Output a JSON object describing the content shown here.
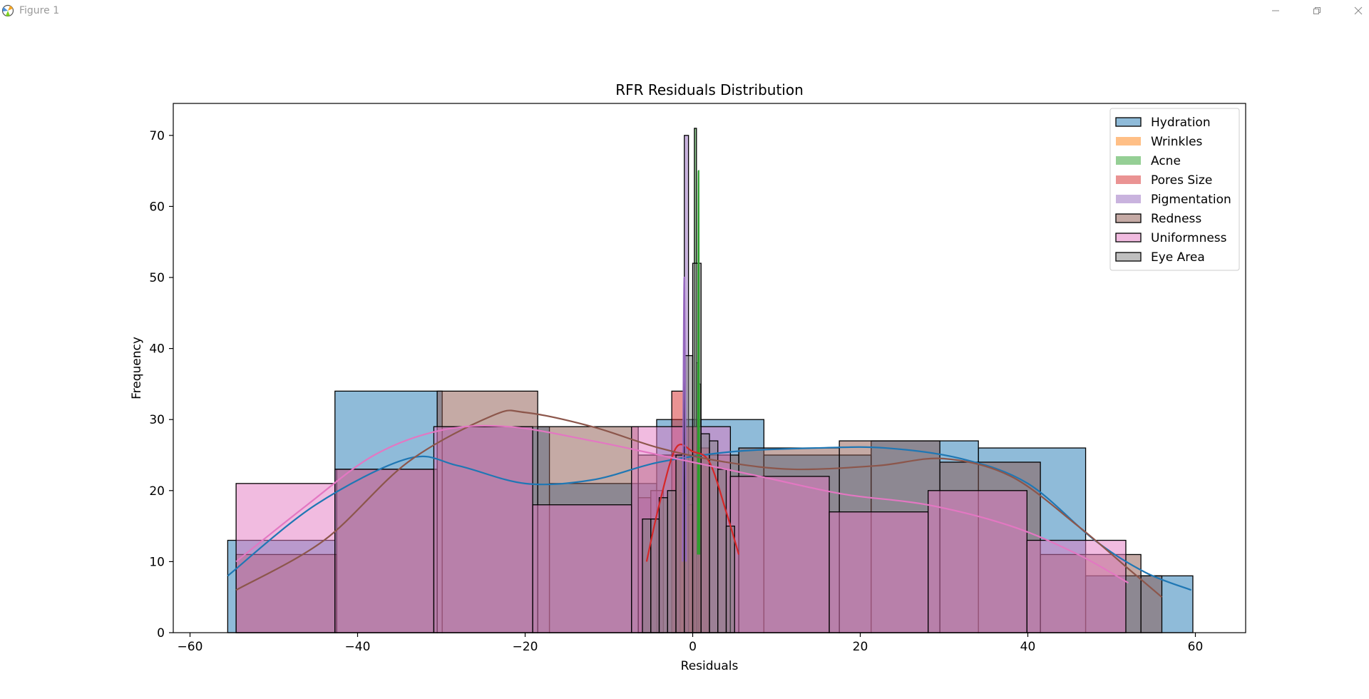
{
  "window": {
    "title": "Figure 1"
  },
  "icons": {
    "app": "matplotlib-figure-icon",
    "minimize": "minimize-icon",
    "maximize": "restore-icon",
    "close": "close-icon"
  },
  "chart_data": {
    "type": "histogram",
    "title": "RFR Residuals Distribution",
    "xlabel": "Residuals",
    "ylabel": "Frequency",
    "xlim": [
      -62,
      66
    ],
    "ylim": [
      0,
      74.5
    ],
    "xticks": [
      -60,
      -40,
      -20,
      0,
      20,
      40,
      60
    ],
    "yticks": [
      0,
      10,
      20,
      30,
      40,
      50,
      60,
      70
    ],
    "grid": false,
    "legend_position": "upper right",
    "kde": true,
    "series": [
      {
        "name": "Hydration",
        "color": "#1f77b4",
        "bins": [
          {
            "x0": -55.5,
            "x1": -42.7,
            "count": 13
          },
          {
            "x0": -42.7,
            "x1": -29.9,
            "count": 34
          },
          {
            "x0": -29.9,
            "x1": -17.1,
            "count": 29
          },
          {
            "x0": -17.1,
            "x1": -4.3,
            "count": 21
          },
          {
            "x0": -4.3,
            "x1": 8.5,
            "count": 30
          },
          {
            "x0": 8.5,
            "x1": 21.3,
            "count": 25
          },
          {
            "x0": 21.3,
            "x1": 34.1,
            "count": 27
          },
          {
            "x0": 34.1,
            "x1": 46.9,
            "count": 26
          },
          {
            "x0": 46.9,
            "x1": 59.7,
            "count": 8
          }
        ],
        "kde_curve": [
          [
            -55.5,
            8
          ],
          [
            -45,
            18
          ],
          [
            -34,
            24.5
          ],
          [
            -28,
            23.5
          ],
          [
            -20,
            21
          ],
          [
            -12,
            21.5
          ],
          [
            -4,
            24
          ],
          [
            5,
            25.5
          ],
          [
            15,
            26
          ],
          [
            23,
            26
          ],
          [
            32,
            24.5
          ],
          [
            40,
            21
          ],
          [
            48,
            13
          ],
          [
            54,
            8.5
          ],
          [
            59.5,
            6
          ]
        ]
      },
      {
        "name": "Wrinkles",
        "color": "#ff7f0e",
        "bins": [
          {
            "x0": -1.5,
            "x1": -1.0,
            "count": 20
          },
          {
            "x0": -1.0,
            "x1": -0.5,
            "count": 24
          },
          {
            "x0": -0.5,
            "x1": 0.0,
            "count": 18
          }
        ],
        "kde_curve": []
      },
      {
        "name": "Acne",
        "color": "#2ca02c",
        "bins": [
          {
            "x0": 0.2,
            "x1": 0.45,
            "count": 71
          },
          {
            "x0": 0.45,
            "x1": 0.7,
            "count": 38
          },
          {
            "x0": 0.7,
            "x1": 0.95,
            "count": 35
          }
        ],
        "kde_curve": [
          [
            0.6,
            11
          ],
          [
            0.65,
            35
          ],
          [
            0.7,
            65
          ],
          [
            0.75,
            35
          ],
          [
            0.8,
            11
          ]
        ]
      },
      {
        "name": "Pores Size",
        "color": "#d62728",
        "bins": [
          {
            "x0": -2.5,
            "x1": -1.0,
            "count": 34
          },
          {
            "x0": -1.0,
            "x1": 0.5,
            "count": 29
          },
          {
            "x0": 0.5,
            "x1": 2.0,
            "count": 26
          }
        ],
        "kde_curve": [
          [
            -5.5,
            10
          ],
          [
            -4,
            18
          ],
          [
            -2,
            26
          ],
          [
            0,
            25.5
          ],
          [
            2,
            24
          ],
          [
            4,
            17
          ],
          [
            5.5,
            11
          ]
        ]
      },
      {
        "name": "Pigmentation",
        "color": "#9467bd",
        "bins": [
          {
            "x0": -6.5,
            "x1": -5.0,
            "count": 19
          },
          {
            "x0": -5.0,
            "x1": -3.5,
            "count": 20
          },
          {
            "x0": -1.0,
            "x1": -0.5,
            "count": 70
          }
        ],
        "kde_curve": [
          [
            -1.2,
            10
          ],
          [
            -1.0,
            50
          ],
          [
            -0.8,
            10
          ]
        ]
      },
      {
        "name": "Redness",
        "color": "#8c564b",
        "bins": [
          {
            "x0": -54.5,
            "x1": -42.5,
            "count": 11
          },
          {
            "x0": -42.5,
            "x1": -30.5,
            "count": 23
          },
          {
            "x0": -30.5,
            "x1": -18.5,
            "count": 34
          },
          {
            "x0": -18.5,
            "x1": -6.5,
            "count": 29
          },
          {
            "x0": -6.5,
            "x1": 5.5,
            "count": 25
          },
          {
            "x0": 5.5,
            "x1": 17.5,
            "count": 26
          },
          {
            "x0": 17.5,
            "x1": 29.5,
            "count": 27
          },
          {
            "x0": 29.5,
            "x1": 41.5,
            "count": 24
          },
          {
            "x0": 41.5,
            "x1": 53.5,
            "count": 11
          },
          {
            "x0": 53.5,
            "x1": 56.0,
            "count": 8
          }
        ],
        "kde_curve": [
          [
            -54.5,
            6
          ],
          [
            -44,
            13
          ],
          [
            -34,
            24
          ],
          [
            -24,
            30.5
          ],
          [
            -20,
            31
          ],
          [
            -12,
            29
          ],
          [
            -4,
            26
          ],
          [
            4,
            24
          ],
          [
            12,
            23
          ],
          [
            22,
            23.5
          ],
          [
            30,
            24.5
          ],
          [
            38,
            22
          ],
          [
            46,
            15
          ],
          [
            52,
            9
          ],
          [
            56,
            5
          ]
        ]
      },
      {
        "name": "Uniformness",
        "color": "#e377c2",
        "bins": [
          {
            "x0": -54.5,
            "x1": -42.7,
            "count": 21
          },
          {
            "x0": -42.7,
            "x1": -30.9,
            "count": 23
          },
          {
            "x0": -30.9,
            "x1": -19.1,
            "count": 29
          },
          {
            "x0": -19.1,
            "x1": -7.3,
            "count": 18
          },
          {
            "x0": -7.3,
            "x1": 4.5,
            "count": 29
          },
          {
            "x0": 4.5,
            "x1": 16.3,
            "count": 22
          },
          {
            "x0": 16.3,
            "x1": 28.1,
            "count": 17
          },
          {
            "x0": 28.1,
            "x1": 39.9,
            "count": 20
          },
          {
            "x0": 39.9,
            "x1": 51.7,
            "count": 13
          }
        ],
        "kde_curve": [
          [
            -54.5,
            10
          ],
          [
            -46,
            18
          ],
          [
            -38,
            25
          ],
          [
            -30,
            28.5
          ],
          [
            -22,
            29
          ],
          [
            -12,
            27
          ],
          [
            -2,
            24.5
          ],
          [
            8,
            22
          ],
          [
            18,
            19.5
          ],
          [
            28,
            18
          ],
          [
            38,
            15
          ],
          [
            46,
            11
          ],
          [
            52,
            7
          ]
        ]
      },
      {
        "name": "Eye Area",
        "color": "#7f7f7f",
        "bins": [
          {
            "x0": -6.0,
            "x1": -5.0,
            "count": 16
          },
          {
            "x0": -5.0,
            "x1": -4.0,
            "count": 16
          },
          {
            "x0": -4.0,
            "x1": -3.0,
            "count": 19
          },
          {
            "x0": -3.0,
            "x1": -2.0,
            "count": 20
          },
          {
            "x0": -2.0,
            "x1": -1.0,
            "count": 25
          },
          {
            "x0": -1.0,
            "x1": 0.0,
            "count": 39
          },
          {
            "x0": 0.0,
            "x1": 1.0,
            "count": 52
          },
          {
            "x0": 1.0,
            "x1": 2.0,
            "count": 28
          },
          {
            "x0": 2.0,
            "x1": 3.0,
            "count": 27
          },
          {
            "x0": 3.0,
            "x1": 4.0,
            "count": 23
          },
          {
            "x0": 4.0,
            "x1": 5.0,
            "count": 15
          }
        ],
        "kde_curve": []
      }
    ]
  }
}
